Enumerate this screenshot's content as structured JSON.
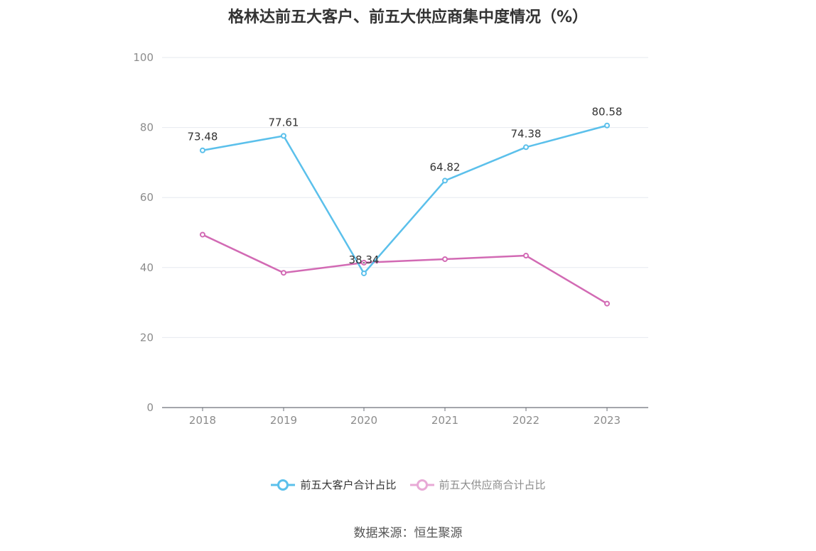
{
  "chart_data": {
    "type": "line",
    "title": "格林达前五大客户、前五大供应商集中度情况（%）",
    "x": [
      "2018",
      "2019",
      "2020",
      "2021",
      "2022",
      "2023"
    ],
    "ylim": [
      0,
      100
    ],
    "yticks": [
      0,
      20,
      40,
      60,
      80,
      100
    ],
    "grid": true,
    "legend_position": "bottom",
    "series": [
      {
        "name": "前五大客户合计占比",
        "color": "#5bc0eb",
        "values": [
          73.48,
          77.61,
          38.34,
          64.82,
          74.38,
          80.58
        ],
        "labels": [
          "73.48",
          "77.61",
          "38.34",
          "64.82",
          "74.38",
          "80.58"
        ]
      },
      {
        "name": "前五大供应商合计占比",
        "color": "#d26ab4",
        "legend_color": "#e8a9d6",
        "values": [
          49.4,
          38.5,
          41.4,
          42.4,
          43.4,
          29.7
        ]
      }
    ]
  },
  "source": "数据来源：恒生聚源"
}
